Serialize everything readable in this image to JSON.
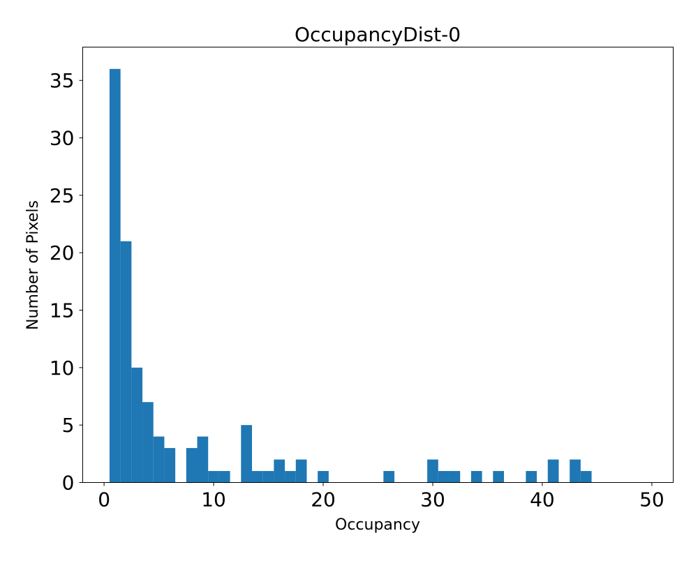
{
  "chart_data": {
    "type": "bar",
    "title": "OccupancyDist-0",
    "xlabel": "Occupancy",
    "ylabel": "Number of Pixels",
    "bin_width": 1,
    "x": [
      1,
      2,
      3,
      4,
      5,
      6,
      7,
      8,
      9,
      10,
      11,
      12,
      13,
      14,
      15,
      16,
      17,
      18,
      19,
      20,
      21,
      22,
      23,
      24,
      25,
      26,
      27,
      28,
      29,
      30,
      31,
      32,
      33,
      34,
      35,
      36,
      37,
      38,
      39,
      40,
      41,
      42,
      43,
      44,
      45,
      46,
      47,
      48,
      49
    ],
    "values": [
      36,
      21,
      10,
      7,
      4,
      3,
      0,
      3,
      4,
      1,
      1,
      0,
      5,
      1,
      1,
      2,
      1,
      2,
      0,
      1,
      0,
      0,
      0,
      0,
      0,
      1,
      0,
      0,
      0,
      2,
      1,
      1,
      0,
      1,
      0,
      1,
      0,
      0,
      1,
      0,
      2,
      0,
      2,
      1,
      0,
      0,
      0,
      0,
      0
    ],
    "xlim": [
      -1.95,
      51.95
    ],
    "ylim": [
      0,
      37.9
    ],
    "xticks": [
      0,
      10,
      20,
      30,
      40,
      50
    ],
    "xtick_labels": [
      "0",
      "10",
      "20",
      "30",
      "40",
      "50"
    ],
    "yticks": [
      0,
      5,
      10,
      15,
      20,
      25,
      30,
      35
    ],
    "ytick_labels": [
      "0",
      "5",
      "10",
      "15",
      "20",
      "25",
      "30",
      "35"
    ],
    "bar_color": "#1f77b4",
    "grid": false,
    "legend": "none"
  }
}
